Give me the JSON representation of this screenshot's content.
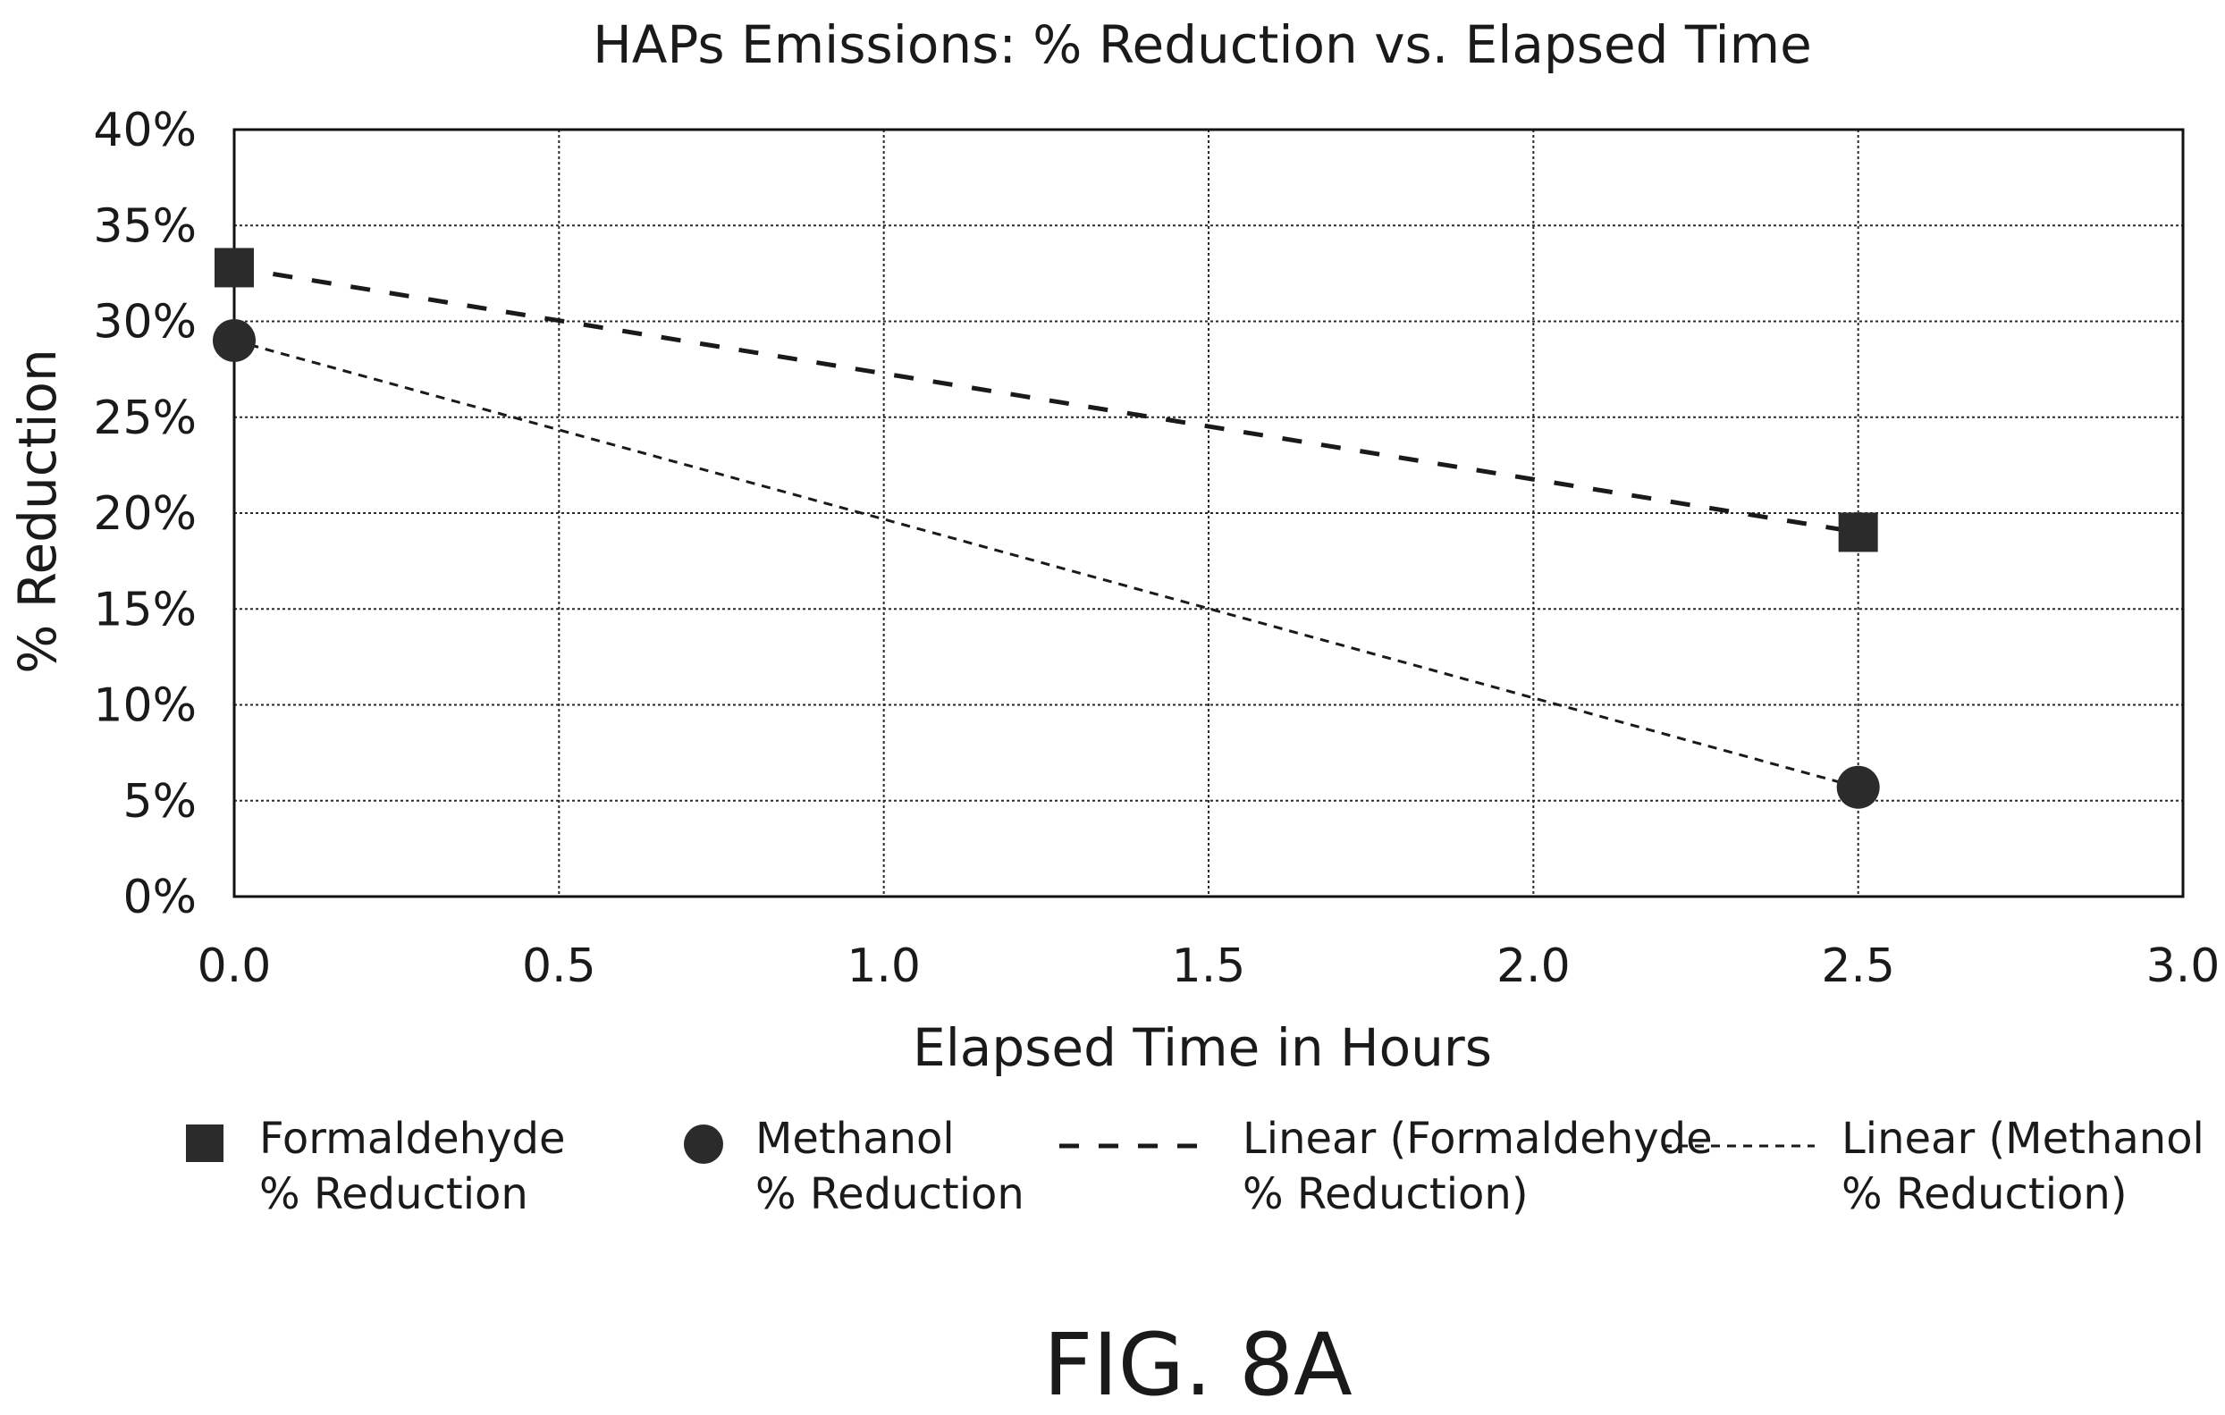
{
  "figure_label": "FIG. 8A",
  "chart_data": {
    "type": "scatter",
    "title": "HAPs Emissions: % Reduction vs. Elapsed Time",
    "xlabel": "Elapsed Time in Hours",
    "ylabel": "% Reduction",
    "xlim": [
      0.0,
      3.0
    ],
    "ylim": [
      0,
      40
    ],
    "x_ticks": [
      "0.0",
      "0.5",
      "1.0",
      "1.5",
      "2.0",
      "2.5",
      "3.0"
    ],
    "y_ticks": [
      "0%",
      "5%",
      "10%",
      "15%",
      "20%",
      "25%",
      "30%",
      "35%",
      "40%"
    ],
    "grid": true,
    "legend_position": "bottom",
    "series": [
      {
        "name": "Formaldehyde % Reduction",
        "legend_lines": [
          "Formaldehyde",
          "% Reduction"
        ],
        "kind": "marker",
        "marker": "square",
        "color": "#2b2b2b",
        "x": [
          0.0,
          2.5
        ],
        "y": [
          32.8,
          19.0
        ]
      },
      {
        "name": "Methanol % Reduction",
        "legend_lines": [
          "Methanol",
          "% Reduction"
        ],
        "kind": "marker",
        "marker": "circle",
        "color": "#2b2b2b",
        "x": [
          0.0,
          2.5
        ],
        "y": [
          29.0,
          5.7
        ]
      },
      {
        "name": "Linear (Formaldehyde % Reduction)",
        "legend_lines": [
          "Linear (Formaldehyde",
          "% Reduction)"
        ],
        "kind": "trendline",
        "dash": "long",
        "color": "#1a1a1a",
        "x": [
          0.0,
          2.5
        ],
        "y": [
          32.8,
          19.0
        ]
      },
      {
        "name": "Linear (Methanol % Reduction)",
        "legend_lines": [
          "Linear (Methanol",
          "% Reduction)"
        ],
        "kind": "trendline",
        "dash": "short",
        "color": "#1a1a1a",
        "x": [
          0.0,
          2.5
        ],
        "y": [
          29.0,
          5.7
        ]
      }
    ]
  }
}
